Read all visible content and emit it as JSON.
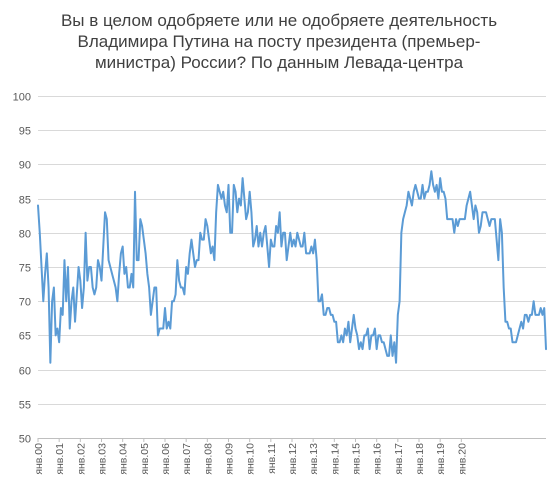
{
  "chart_data": {
    "type": "line",
    "title_lines": [
      "Вы в целом одобряете или не одобряете деятельность",
      "Владимира Путина на посту президента (премьер-",
      "министра) России? По данным Левада-центра"
    ],
    "xlabel": "",
    "ylabel": "",
    "ylim": [
      50,
      100
    ],
    "yticks": [
      50,
      55,
      60,
      65,
      70,
      75,
      80,
      85,
      90,
      95,
      100
    ],
    "x_tick_labels": [
      "янв.00",
      "янв.01",
      "янв.02",
      "янв.03",
      "янв.04",
      "янв.05",
      "янв.06",
      "янв.07",
      "янв.08",
      "янв.09",
      "янв.10",
      "янв.11",
      "янв.12",
      "янв.13",
      "янв.14",
      "янв.15",
      "янв.16",
      "янв.17",
      "янв.18",
      "янв.19",
      "янв.20"
    ],
    "x_start": "янв.00",
    "grid": "horizontal",
    "legend": "none",
    "line_color": "#5b9bd5",
    "series": [
      {
        "values": [
          84,
          80,
          75,
          70,
          74,
          77,
          72,
          61,
          70,
          72,
          65,
          66,
          64,
          69,
          68,
          76,
          70,
          75,
          66,
          70,
          72,
          67,
          71,
          75,
          73,
          69,
          72,
          80,
          73,
          75,
          75,
          72,
          71,
          72,
          76,
          75,
          73,
          78,
          83,
          82,
          76,
          75,
          74,
          73,
          72,
          70,
          74,
          77,
          78,
          74,
          75,
          72,
          72,
          74,
          72,
          86,
          76,
          76,
          82,
          81,
          79,
          77,
          74,
          72,
          68,
          70,
          72,
          72,
          65,
          66,
          66,
          66,
          69,
          66,
          67,
          66,
          70,
          70,
          71,
          76,
          73,
          72,
          72,
          71,
          75,
          74,
          77,
          79,
          77,
          75,
          76,
          76,
          80,
          79,
          79,
          82,
          81,
          79,
          77,
          78,
          76,
          83,
          87,
          86,
          85,
          86,
          84,
          83,
          87,
          80,
          80,
          87,
          86,
          83,
          85,
          84,
          88,
          85,
          82,
          83,
          86,
          83,
          78,
          79,
          81,
          78,
          80,
          78,
          80,
          81,
          78,
          75,
          79,
          78,
          78,
          81,
          80,
          83,
          78,
          80,
          80,
          76,
          78,
          80,
          78,
          79,
          78,
          80,
          79,
          78,
          78,
          80,
          77,
          77,
          77,
          78,
          77,
          79,
          76,
          70,
          70,
          71,
          68,
          68,
          69,
          69,
          68,
          68,
          67,
          67,
          64,
          64,
          65,
          64,
          66,
          65,
          67,
          64,
          66,
          68,
          66,
          65,
          63,
          64,
          63,
          65,
          65,
          66,
          63,
          65,
          65,
          66,
          63,
          65,
          65,
          64,
          64,
          63,
          62,
          62,
          65,
          62,
          64,
          61,
          68,
          70,
          80,
          82,
          83,
          84,
          86,
          85,
          84,
          86,
          87,
          86,
          85,
          85,
          87,
          85,
          86,
          86,
          87,
          89,
          87,
          86,
          87,
          85,
          88,
          86,
          86,
          85,
          82,
          82,
          82,
          82,
          80,
          82,
          81,
          82,
          82,
          82,
          82,
          84,
          85,
          86,
          84,
          82,
          84,
          83,
          80,
          81,
          83,
          83,
          83,
          82,
          81,
          82,
          82,
          82,
          79,
          76,
          82,
          80,
          72,
          67,
          67,
          66,
          66,
          64,
          64,
          64,
          65,
          66,
          67,
          66,
          68,
          68,
          67,
          68,
          68,
          70,
          68,
          68,
          68,
          69,
          68,
          69,
          63
        ]
      }
    ]
  }
}
